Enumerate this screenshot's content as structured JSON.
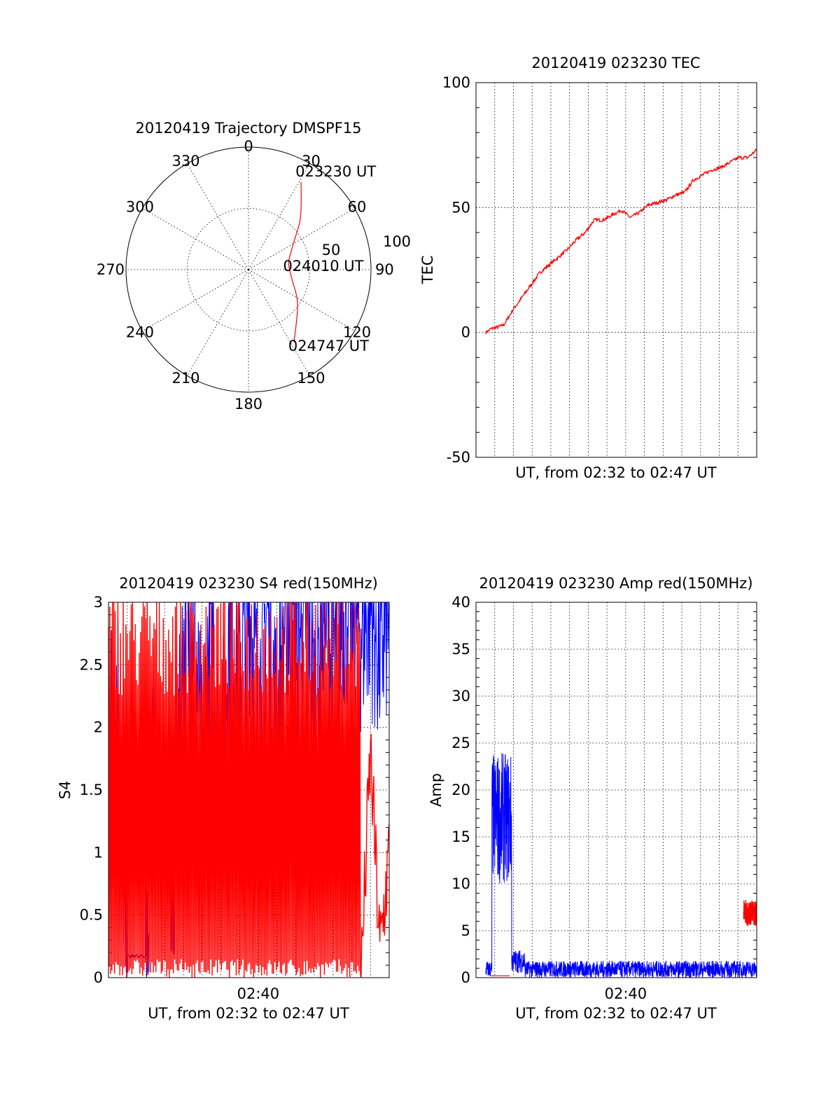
{
  "chart_data": [
    {
      "id": "trajectory",
      "type": "polar",
      "title": "20120419 Trajectory DMSPF15",
      "azimuth_labels": [
        "0",
        "30",
        "60",
        "90",
        "120",
        "150",
        "180",
        "210",
        "240",
        "270",
        "300",
        "330"
      ],
      "radial_labels": [
        "50",
        "100"
      ],
      "colors": {
        "track": "#ff0000"
      },
      "track": {
        "points": [
          {
            "az": 31,
            "el": 15,
            "label": "023230 UT"
          },
          {
            "az": 45,
            "el": 36
          },
          {
            "az": 60,
            "el": 52
          },
          {
            "az": 80,
            "el": 60,
            "label": "024010 UT"
          },
          {
            "az": 100,
            "el": 58
          },
          {
            "az": 125,
            "el": 46
          },
          {
            "az": 148,
            "el": 27,
            "label": "024747 UT"
          }
        ]
      }
    },
    {
      "id": "tec",
      "type": "line",
      "title": "20120419 023230 TEC",
      "xlabel": "UT, from 02:32 to 02:47 UT",
      "ylabel": "TEC",
      "ylim": [
        -50,
        100
      ],
      "yticks": [
        "-50",
        "0",
        "50",
        "100"
      ],
      "grid": true,
      "colors": {
        "line": "#ff0000"
      },
      "series": [
        {
          "x": [
            0,
            0.3,
            0.6,
            1.0,
            1.5,
            2.0,
            2.5,
            3.0,
            3.5,
            4.0,
            4.5,
            5.0,
            5.5,
            6.0,
            6.5,
            7.0,
            7.5,
            8.0,
            8.5,
            9.0,
            9.5,
            10.0,
            10.5,
            11.0,
            11.5,
            12.0,
            12.5,
            13.0,
            13.5,
            14.0,
            14.5,
            15.0
          ],
          "values": [
            0,
            1.5,
            2,
            3,
            9,
            14,
            19,
            24,
            27,
            30,
            33,
            37,
            40,
            45,
            45,
            47,
            49,
            46,
            48,
            51,
            52,
            53,
            55,
            56,
            61,
            63,
            65,
            66,
            68,
            70,
            70,
            73
          ]
        }
      ]
    },
    {
      "id": "s4",
      "type": "line",
      "title": "20120419 023230 S4 red(150MHz)",
      "xlabel": "UT, from 02:32 to 02:47 UT",
      "ylabel": "S4",
      "ylim": [
        0,
        3
      ],
      "yticks": [
        "0",
        "0.5",
        "1",
        "1.5",
        "2",
        "2.5",
        "3"
      ],
      "xticks": [
        "02:40"
      ],
      "grid": true,
      "colors": {
        "red": "#ff0000",
        "blue": "#0000ff"
      },
      "series": [
        {
          "name": "",
          "color": "red",
          "x": [
            0,
            0.5,
            1.0,
            1.5,
            2.0,
            2.5,
            3.0,
            3.5,
            4.0,
            4.5,
            5.0,
            5.5,
            6.0,
            6.5,
            7.0,
            7.5,
            8.0,
            8.5,
            9.0,
            9.5,
            10.0,
            10.5,
            11.0,
            11.5,
            12.0,
            12.5,
            13.0,
            13.5,
            14.0,
            14.5,
            15.0
          ],
          "values": [
            3,
            0,
            3,
            0,
            3,
            0.1,
            3,
            0,
            2.5,
            0,
            3,
            0,
            2.8,
            0,
            3,
            0,
            2.2,
            0,
            2.9,
            0,
            3,
            0,
            2.4,
            0,
            3,
            0,
            2.8,
            0,
            1.8,
            0.2,
            1.0
          ]
        },
        {
          "name": "",
          "color": "blue",
          "x": [
            0,
            0.5,
            1.0,
            1.5,
            2.0,
            2.5,
            3.0,
            3.5,
            4.0,
            4.5,
            5.0,
            5.5,
            6.0,
            6.5,
            7.0,
            7.5,
            8.0,
            8.5,
            9.0,
            9.5,
            10.0,
            10.5,
            11.0,
            11.5,
            12.0,
            12.5,
            13.0,
            13.5,
            14.0,
            14.5,
            15.0
          ],
          "values": [
            2.0,
            2.3,
            0.18,
            0.17,
            0.18,
            2.1,
            0.9,
            0.8,
            2.6,
            3,
            1.6,
            3,
            1.5,
            3,
            2.4,
            3,
            2.2,
            3,
            2.0,
            3,
            2.6,
            3,
            2.2,
            3,
            2.5,
            3,
            3,
            2.8,
            3,
            2.6,
            3
          ]
        }
      ]
    },
    {
      "id": "amp",
      "type": "line",
      "title": "20120419 023230 Amp red(150MHz)",
      "xlabel": "UT, from 02:32 to 02:47 UT",
      "ylabel": "Amp",
      "ylim": [
        0,
        40
      ],
      "yticks": [
        "0",
        "5",
        "10",
        "15",
        "20",
        "25",
        "30",
        "35",
        "40"
      ],
      "xticks": [
        "02:40"
      ],
      "grid": true,
      "colors": {
        "red": "#ff0000",
        "blue": "#0000ff"
      },
      "series": [
        {
          "name": "",
          "color": "blue",
          "x": [
            0,
            0.7,
            0.8,
            1.0,
            1.3,
            1.6,
            1.8,
            2.0,
            2.2,
            2.5,
            3.0,
            4.0,
            5.0,
            6.0,
            7.0,
            8.0,
            9.0,
            10.0,
            11.0,
            12.0,
            13.0,
            13.8,
            14.0,
            14.5,
            15.0
          ],
          "values": [
            1,
            1,
            23,
            12,
            22,
            10,
            21,
            2,
            2.5,
            1,
            1,
            1,
            0.8,
            1,
            1.2,
            0.8,
            1,
            1,
            1,
            1,
            1,
            1.5,
            2.5,
            1,
            1
          ]
        },
        {
          "name": "",
          "color": "red",
          "x": [
            0.8,
            1.8,
            14.5,
            14.7,
            15.0
          ],
          "values": [
            0.2,
            0.2,
            7,
            8,
            7.5
          ]
        }
      ]
    }
  ]
}
